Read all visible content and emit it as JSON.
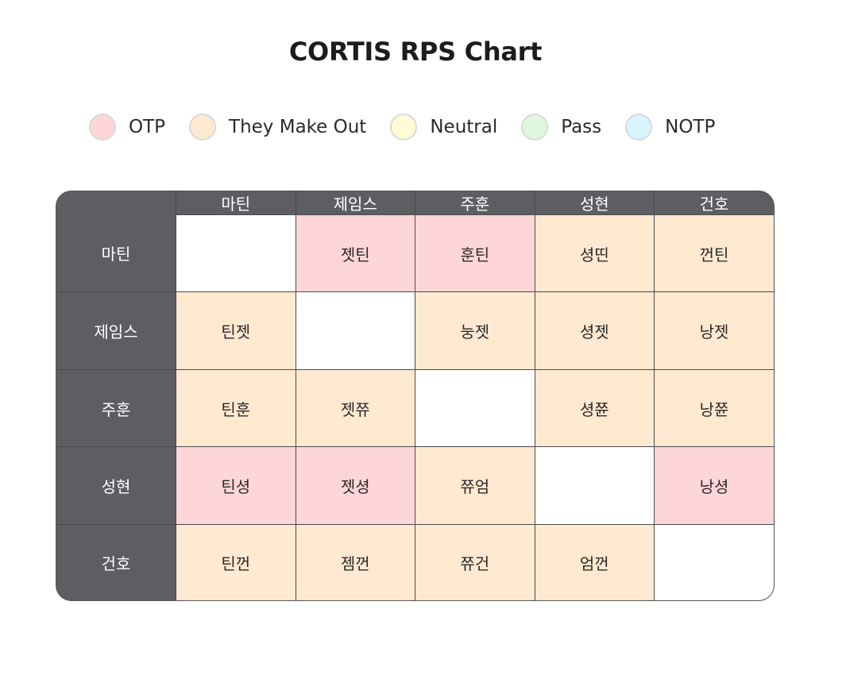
{
  "title": "CORTIS RPS Chart",
  "legend": [
    {
      "key": "OTP",
      "label": "OTP",
      "color": "#ffd6d8"
    },
    {
      "key": "TMO",
      "label": "They Make Out",
      "color": "#ffe9d0"
    },
    {
      "key": "NEU",
      "label": "Neutral",
      "color": "#fffbd6"
    },
    {
      "key": "PASS",
      "label": "Pass",
      "color": "#dff7dc"
    },
    {
      "key": "NOTP",
      "label": "NOTP",
      "color": "#d6f5ff"
    }
  ],
  "chart_data": {
    "type": "table",
    "title": "CORTIS RPS Chart",
    "corner": "",
    "columns": [
      "마틴",
      "제임스",
      "주훈",
      "성현",
      "건호"
    ],
    "rows": [
      {
        "label": "마틴",
        "cells": [
          {
            "text": "",
            "category": "EMPTY"
          },
          {
            "text": "젯틴",
            "category": "OTP"
          },
          {
            "text": "훈틴",
            "category": "OTP"
          },
          {
            "text": "셩띤",
            "category": "TMO"
          },
          {
            "text": "껀틴",
            "category": "TMO"
          }
        ]
      },
      {
        "label": "제임스",
        "cells": [
          {
            "text": "틴젯",
            "category": "TMO"
          },
          {
            "text": "",
            "category": "EMPTY"
          },
          {
            "text": "눙젯",
            "category": "TMO"
          },
          {
            "text": "셩젯",
            "category": "TMO"
          },
          {
            "text": "낭젯",
            "category": "TMO"
          }
        ]
      },
      {
        "label": "주훈",
        "cells": [
          {
            "text": "틴훈",
            "category": "TMO"
          },
          {
            "text": "젯쮸",
            "category": "TMO"
          },
          {
            "text": "",
            "category": "EMPTY"
          },
          {
            "text": "셩쮼",
            "category": "TMO"
          },
          {
            "text": "낭쮼",
            "category": "TMO"
          }
        ]
      },
      {
        "label": "성현",
        "cells": [
          {
            "text": "틴셩",
            "category": "OTP"
          },
          {
            "text": "젯셩",
            "category": "OTP"
          },
          {
            "text": "쮸엄",
            "category": "TMO"
          },
          {
            "text": "",
            "category": "EMPTY"
          },
          {
            "text": "낭셩",
            "category": "OTP"
          }
        ]
      },
      {
        "label": "건호",
        "cells": [
          {
            "text": "틴껀",
            "category": "TMO"
          },
          {
            "text": "젬껀",
            "category": "TMO"
          },
          {
            "text": "쮸건",
            "category": "TMO"
          },
          {
            "text": "엄껀",
            "category": "TMO"
          },
          {
            "text": "",
            "category": "EMPTY"
          }
        ]
      }
    ]
  },
  "category_colors": {
    "OTP": "#ffd6d8",
    "TMO": "#ffe9d0",
    "NEU": "#fffbd6",
    "PASS": "#dff7dc",
    "NOTP": "#d6f5ff",
    "EMPTY": "#ffffff"
  }
}
